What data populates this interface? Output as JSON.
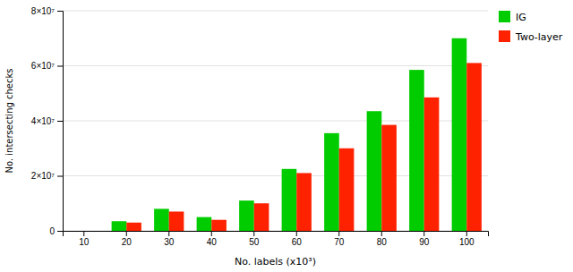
{
  "chart_data": {
    "type": "bar",
    "categories": [
      "10",
      "20",
      "30",
      "40",
      "50",
      "60",
      "70",
      "80",
      "90",
      "100"
    ],
    "series": [
      {
        "name": "IG",
        "color": "#00CC00",
        "values": [
          0,
          3500000,
          8000000,
          5000000,
          11000000,
          22500000,
          35500000,
          43500000,
          58500000,
          70000000
        ]
      },
      {
        "name": "Two-layer",
        "color": "#FF2200",
        "values": [
          0,
          3000000,
          7000000,
          4000000,
          10000000,
          21000000,
          30000000,
          38500000,
          48500000,
          61000000
        ]
      }
    ],
    "xlabel": "No. labels (x10³)",
    "ylabel": "No. intersecting checks",
    "ylim": [
      0,
      80000000
    ],
    "yticks": [
      0,
      {
        "value": 20000000,
        "label": "2×10⁷"
      },
      {
        "value": 40000000,
        "label": "4×10⁷"
      },
      {
        "value": 60000000,
        "label": "6×10⁷"
      },
      {
        "value": 80000000,
        "label": "8×10⁷"
      }
    ],
    "grid": true,
    "legend": "right"
  }
}
